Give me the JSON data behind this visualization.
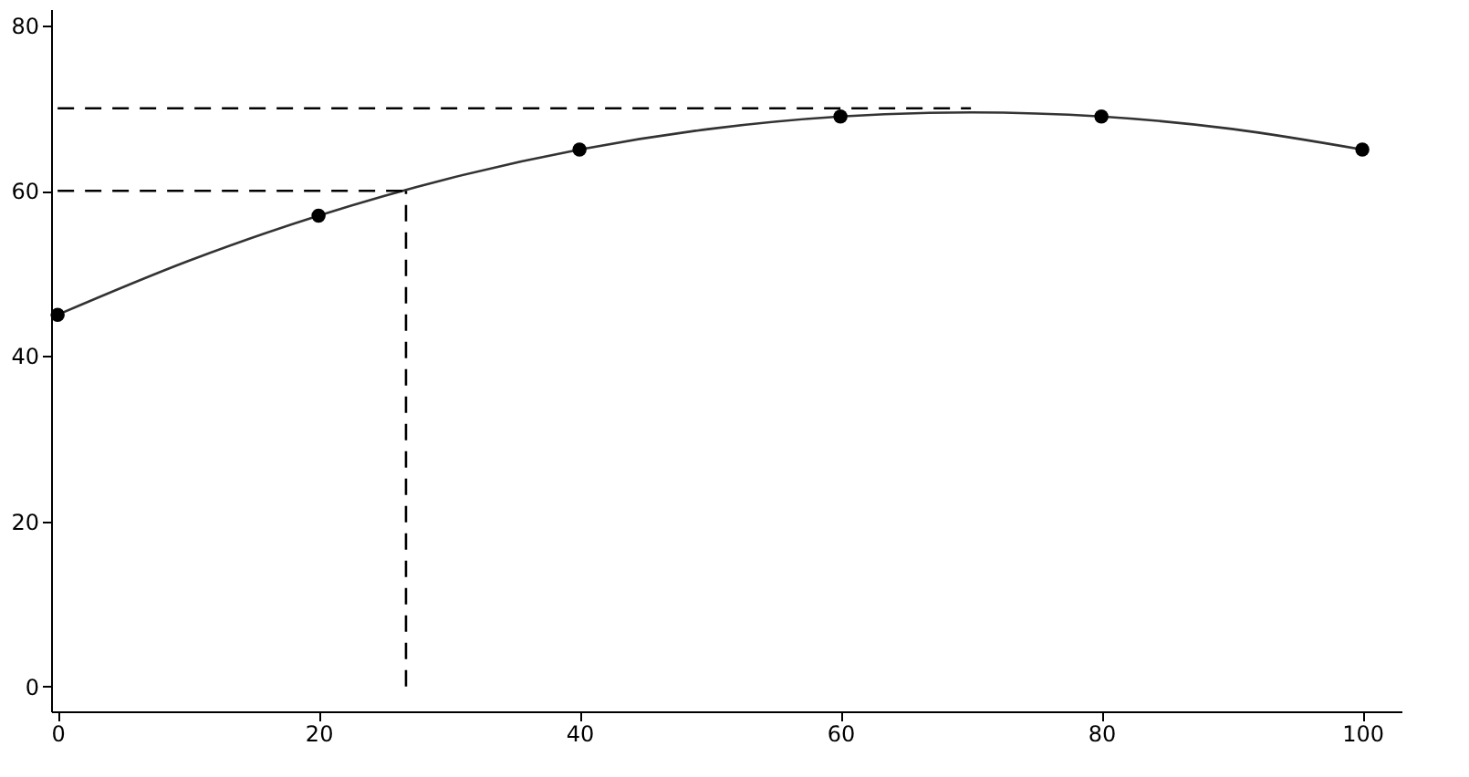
{
  "chart_data": {
    "type": "scatter",
    "xlim": [
      -0.5,
      103
    ],
    "ylim": [
      -3,
      82
    ],
    "xticks": [
      0,
      20,
      40,
      60,
      80,
      100
    ],
    "yticks": [
      0,
      20,
      40,
      60,
      80
    ],
    "grid": false,
    "series": [
      {
        "color": "#000000",
        "marker": "circle",
        "x": [
          0,
          20,
          40,
          60,
          80,
          100
        ],
        "values": [
          45,
          57,
          65,
          69,
          69,
          65
        ]
      },
      {
        "type": "line",
        "color": "#333333",
        "line_style": "solid",
        "x": [
          0,
          10,
          20,
          30,
          40,
          50,
          60,
          70,
          80,
          90,
          100
        ],
        "values": [
          45,
          51.5,
          57,
          61.5,
          65,
          67.5,
          69,
          69.5,
          69,
          67.5,
          65
        ]
      },
      {
        "type": "line",
        "color": "#000000",
        "line_style": "dashed",
        "x": [
          0,
          70
        ],
        "values": [
          70,
          70
        ]
      },
      {
        "type": "line",
        "color": "#000000",
        "line_style": "dashed",
        "x": [
          0,
          26.7
        ],
        "values": [
          60,
          60
        ]
      },
      {
        "type": "line",
        "color": "#000000",
        "line_style": "dashed",
        "x": [
          26.7,
          26.7
        ],
        "values": [
          0,
          60
        ]
      }
    ]
  }
}
